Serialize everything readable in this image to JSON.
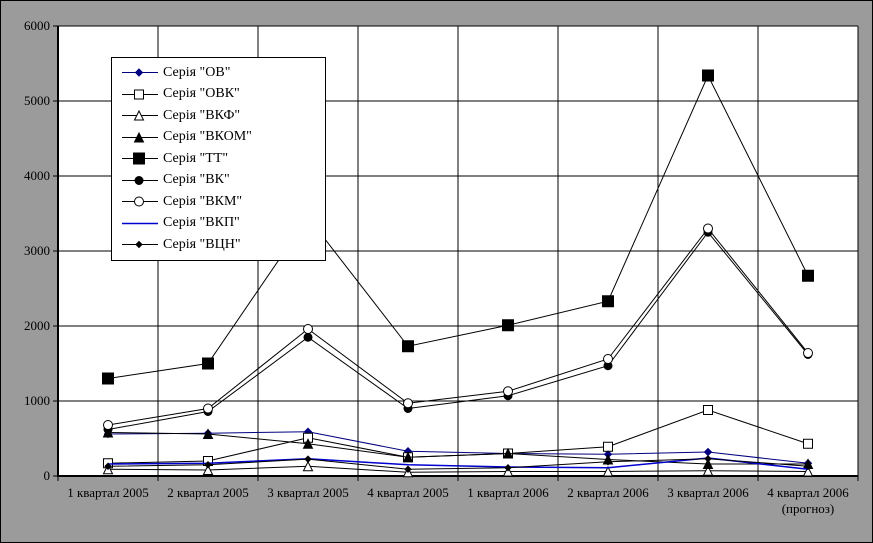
{
  "chart_data": {
    "type": "line",
    "title": "",
    "xlabel": "",
    "ylabel": "",
    "ylim": [
      0,
      6000
    ],
    "ytick_step": 1000,
    "grid": true,
    "legend_position": "top-left-inside",
    "y_ticks": [
      "0",
      "1000",
      "2000",
      "3000",
      "4000",
      "5000",
      "6000"
    ],
    "categories": [
      "1 квартал 2005",
      "2 квартал 2005",
      "3 квартал 2005",
      "4 квартал 2005",
      "1 квартал 2006",
      "2 квартал 2006",
      "3 квартал 2006",
      "4 квартал 2006\n(прогноз)"
    ],
    "colors": {
      "background": "#9B9B9B",
      "plot_background": "#FFFFFF",
      "grid": "#000000",
      "axis": "#000000",
      "legend_background": "#FFFFFF"
    },
    "series": [
      {
        "id": "ov",
        "name": "Серія \"ОВ\"",
        "color": "#000080",
        "marker": "diamond",
        "marker_filled": true,
        "marker_size": 3.5,
        "values": [
          560,
          570,
          590,
          330,
          300,
          290,
          320,
          170
        ]
      },
      {
        "id": "ovk",
        "name": "Серія \"ОВК\"",
        "color": "#000000",
        "marker": "square",
        "marker_filled": false,
        "marker_size": 4.5,
        "values": [
          170,
          200,
          510,
          250,
          300,
          390,
          880,
          430
        ]
      },
      {
        "id": "vkf",
        "name": "Серія \"ВКФ\"",
        "color": "#000000",
        "marker": "triangle",
        "marker_filled": false,
        "marker_size": 4.5,
        "values": [
          90,
          80,
          130,
          50,
          60,
          60,
          70,
          60
        ]
      },
      {
        "id": "vkom",
        "name": "Серія \"ВКОМ\"",
        "color": "#000000",
        "marker": "triangle",
        "marker_filled": true,
        "marker_size": 4.5,
        "values": [
          580,
          560,
          430,
          250,
          300,
          220,
          160,
          160
        ]
      },
      {
        "id": "tt",
        "name": "Серія \"ТТ\"",
        "color": "#000000",
        "marker": "square",
        "marker_filled": true,
        "marker_size": 5.5,
        "values": [
          1300,
          1500,
          3450,
          1730,
          2010,
          2330,
          5340,
          2670
        ]
      },
      {
        "id": "vk",
        "name": "Серія \"ВК\"",
        "color": "#000000",
        "marker": "circle",
        "marker_filled": true,
        "marker_size": 4,
        "values": [
          620,
          860,
          1850,
          900,
          1070,
          1470,
          3250,
          1620
        ]
      },
      {
        "id": "vkm",
        "name": "Серія \"ВКМ\"",
        "color": "#000000",
        "marker": "circle",
        "marker_filled": false,
        "marker_size": 4.5,
        "values": [
          680,
          900,
          1960,
          970,
          1130,
          1560,
          3300,
          1640
        ]
      },
      {
        "id": "vkp",
        "name": "Серія \"ВКП\"",
        "color": "#0000D0",
        "marker": "none",
        "marker_filled": true,
        "marker_size": 0,
        "values": [
          160,
          170,
          230,
          150,
          120,
          110,
          240,
          90
        ]
      },
      {
        "id": "vtsn",
        "name": "Серія \"ВЦН\"",
        "color": "#000000",
        "marker": "diamond",
        "marker_filled": true,
        "marker_size": 3,
        "values": [
          130,
          150,
          225,
          90,
          110,
          190,
          230,
          130
        ]
      }
    ]
  }
}
